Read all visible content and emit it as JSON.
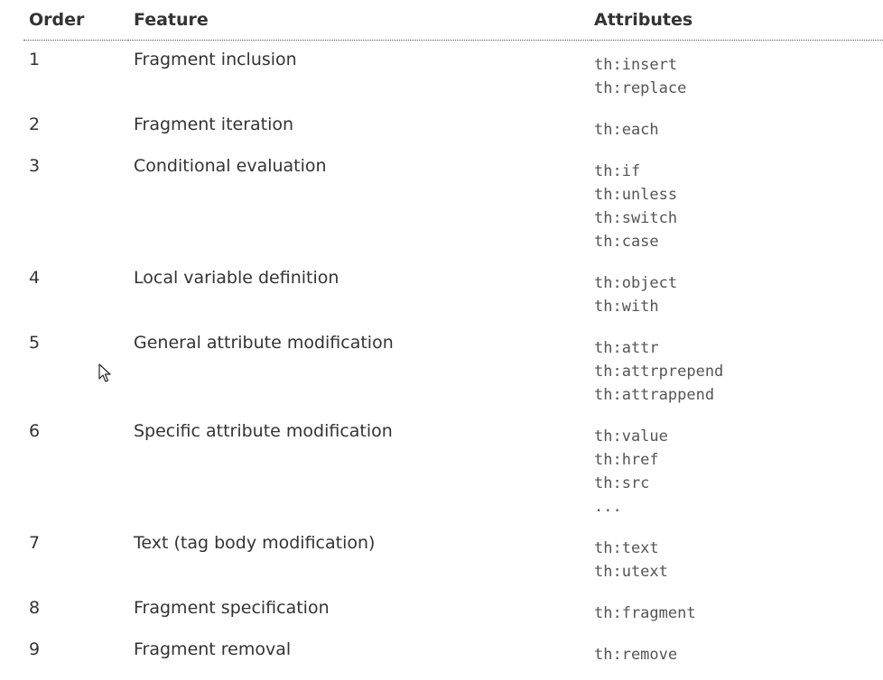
{
  "table": {
    "headers": {
      "order": "Order",
      "feature": "Feature",
      "attributes": "Attributes"
    },
    "rows": [
      {
        "order": "1",
        "feature": "Fragment inclusion",
        "attributes": [
          "th:insert",
          "th:replace"
        ]
      },
      {
        "order": "2",
        "feature": "Fragment iteration",
        "attributes": [
          "th:each"
        ]
      },
      {
        "order": "3",
        "feature": "Conditional evaluation",
        "attributes": [
          "th:if",
          "th:unless",
          "th:switch",
          "th:case"
        ]
      },
      {
        "order": "4",
        "feature": "Local variable definition",
        "attributes": [
          "th:object",
          "th:with"
        ]
      },
      {
        "order": "5",
        "feature": "General attribute modification",
        "attributes": [
          "th:attr",
          "th:attrprepend",
          "th:attrappend"
        ]
      },
      {
        "order": "6",
        "feature": "Specific attribute modification",
        "attributes": [
          "th:value",
          "th:href",
          "th:src",
          "..."
        ]
      },
      {
        "order": "7",
        "feature": "Text (tag body modification)",
        "attributes": [
          "th:text",
          "th:utext"
        ]
      },
      {
        "order": "8",
        "feature": "Fragment specification",
        "attributes": [
          "th:fragment"
        ]
      },
      {
        "order": "9",
        "feature": "Fragment removal",
        "attributes": [
          "th:remove"
        ]
      }
    ]
  },
  "cursor": {
    "icon": "mouse-pointer-icon"
  }
}
